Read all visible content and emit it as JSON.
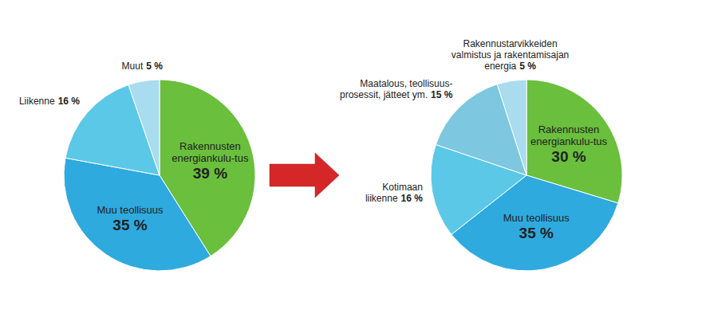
{
  "chart_data": [
    {
      "type": "pie",
      "categories": [
        "Rakennusten\nenergiankulu-tus",
        "Muu teollisuus",
        "Liikenne",
        "Muut"
      ],
      "values": [
        39,
        35,
        16,
        5
      ],
      "value_labels": [
        "39 %",
        "35 %",
        "16 %",
        "5 %"
      ],
      "colors": [
        "#6abf3c",
        "#2eaadf",
        "#5bc8e8",
        "#a8dcee"
      ],
      "data_labels": true
    },
    {
      "type": "pie",
      "categories": [
        "Rakennusten\nenergiankulu-tus",
        "Muu teollisuus",
        "Kotimaan\nliikenne",
        "Maatalous, teollisuus-\nprosessit, jätteet ym.",
        "Rakennustarvikkeiden\nvalmistus ja rakentamisajan\nenergia"
      ],
      "values": [
        30,
        35,
        16,
        15,
        5
      ],
      "value_labels": [
        "30 %",
        "35 %",
        "16 %",
        "15 %",
        "5 %"
      ],
      "colors": [
        "#6abf3c",
        "#2eaadf",
        "#5bc8e8",
        "#7dc8e0",
        "#a8dcee"
      ],
      "data_labels": true
    }
  ]
}
